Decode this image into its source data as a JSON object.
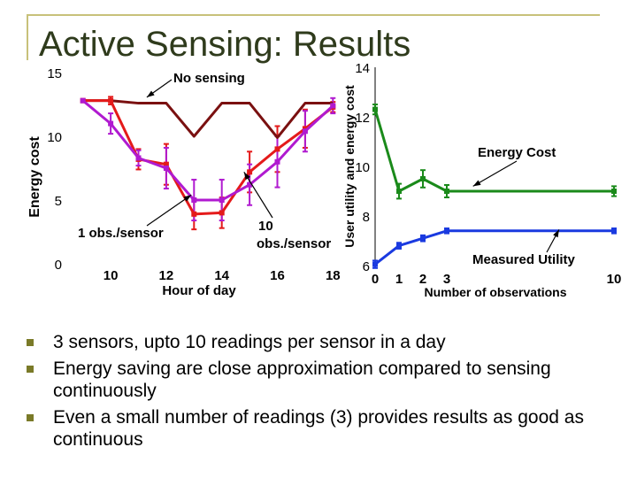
{
  "slide": {
    "title": "Active Sensing: Results",
    "bullets": [
      "3 sensors, upto 10 readings per sensor in a day",
      "Energy saving are close approximation compared to sensing continuously",
      "Even a small number of readings (3) provides results as good as continuous"
    ]
  },
  "colors": {
    "no_sensing": "#7a1010",
    "one_obs": "#e41a1a",
    "ten_obs": "#b01ad0",
    "energy_cost": "#1a8a1a",
    "measured_utility": "#1a3ae0",
    "title": "#2f3b1c",
    "bullet": "#7a7a28"
  },
  "chart_data": [
    {
      "type": "line",
      "title": "",
      "xlabel": "Hour of day",
      "ylabel": "Energy cost",
      "xlim": [
        8.5,
        18.5
      ],
      "ylim": [
        0,
        15
      ],
      "xticks": [
        "10",
        "12",
        "14",
        "16",
        "18"
      ],
      "yticks": [
        "0",
        "5",
        "10",
        "15"
      ],
      "series": [
        {
          "key": "no_sensing",
          "x": [
            9,
            10,
            11,
            12,
            13,
            14,
            15,
            16,
            17,
            18
          ],
          "values": [
            12.8,
            12.8,
            12.6,
            12.6,
            10.0,
            12.6,
            12.6,
            9.9,
            12.6,
            12.6
          ]
        },
        {
          "key": "one_obs",
          "x": [
            9,
            10,
            11,
            12,
            13,
            14,
            15,
            16,
            17,
            18
          ],
          "values": [
            12.8,
            12.8,
            8.2,
            7.8,
            3.9,
            4.0,
            7.2,
            9.0,
            10.6,
            12.3
          ],
          "err": [
            0,
            0.3,
            0.8,
            1.6,
            1.2,
            1.2,
            1.6,
            1.8,
            1.5,
            0.4
          ]
        },
        {
          "key": "ten_obs",
          "x": [
            9,
            10,
            11,
            12,
            13,
            14,
            15,
            16,
            17,
            18
          ],
          "values": [
            12.8,
            11.0,
            8.3,
            7.5,
            5.0,
            5.0,
            6.2,
            8.0,
            10.4,
            12.4
          ],
          "err": [
            0,
            0.8,
            0.6,
            1.6,
            1.6,
            1.6,
            1.6,
            2.0,
            1.6,
            0.6
          ]
        }
      ],
      "annotations": [
        {
          "text": "No sensing",
          "target": "no_sensing"
        },
        {
          "text": "1 obs./sensor",
          "target": "ten_obs"
        },
        {
          "text": "10",
          "target": "one_obs"
        },
        {
          "text": "obs./sensor",
          "target": "one_obs"
        }
      ]
    },
    {
      "type": "line",
      "title": "",
      "xlabel": "Number of observations",
      "ylabel": "User utility and energy cost",
      "xlim": [
        0,
        10
      ],
      "ylim": [
        6,
        14
      ],
      "xticks": [
        "0",
        "1",
        "2",
        "3",
        "10"
      ],
      "xtick_positions": [
        0,
        1,
        2,
        3,
        10
      ],
      "yticks": [
        "6",
        "8",
        "10",
        "12",
        "14"
      ],
      "series": [
        {
          "key": "energy_cost",
          "x": [
            0,
            1,
            2,
            3,
            10
          ],
          "values": [
            12.3,
            9.0,
            9.5,
            9.0,
            9.0
          ],
          "err": [
            0.2,
            0.3,
            0.35,
            0.25,
            0.2
          ]
        },
        {
          "key": "measured_utility",
          "x": [
            0,
            1,
            2,
            3,
            10
          ],
          "values": [
            6.05,
            6.8,
            7.1,
            7.4,
            7.4
          ],
          "err": [
            0.15,
            0.12,
            0.12,
            0.1,
            0.1
          ]
        }
      ],
      "annotations": [
        {
          "text": "Energy Cost",
          "target": "energy_cost"
        },
        {
          "text": "Measured Utility",
          "target": "measured_utility"
        }
      ]
    }
  ]
}
